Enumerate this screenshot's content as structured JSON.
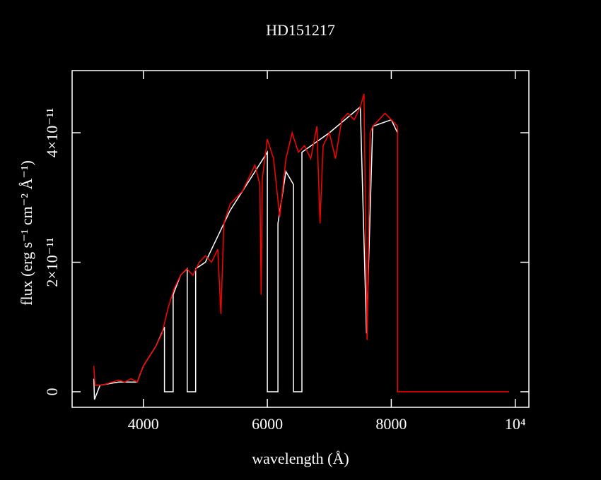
{
  "chart_data": {
    "type": "line",
    "title": "HD151217",
    "x_label": "wavelength (Å)",
    "y_label": "flux (erg s⁻¹ cm⁻² Å⁻¹)",
    "xlim": [
      2850,
      10220
    ],
    "ylim": [
      -2.4e-12,
      4.96e-11
    ],
    "xticks": [
      4000,
      6000,
      8000,
      {
        "value": 10000,
        "label": "10⁴"
      }
    ],
    "yticks": [
      0,
      {
        "value": 2e-11,
        "label": "2×10⁻¹¹"
      },
      {
        "value": 4e-11,
        "label": "4×10⁻¹¹"
      }
    ],
    "series": [
      {
        "color": "#ffffff",
        "x": [
          3200,
          3210,
          3300,
          3600,
          3900,
          4000,
          4200,
          4340,
          4340,
          4480,
          4480,
          4600,
          4707,
          4707,
          4843,
          4843,
          5000,
          5400,
          5800,
          6000,
          6000,
          6171,
          6171,
          6300,
          6422,
          6422,
          6558,
          6558,
          7000,
          7500,
          7600,
          7700,
          8000,
          8100
        ],
        "values": [
          2e-12,
          -1.2e-12,
          1e-12,
          1.5e-12,
          1.5e-12,
          4e-12,
          7e-12,
          1e-11,
          0,
          0,
          1.5e-11,
          1.8e-11,
          1.9e-11,
          0,
          0,
          1.9e-11,
          2e-11,
          2.8e-11,
          3.4e-11,
          3.7e-11,
          0,
          0,
          2.6e-11,
          3.4e-11,
          3.2e-11,
          0,
          0,
          3.7e-11,
          4e-11,
          4.4e-11,
          9e-12,
          4.1e-11,
          4.2e-11,
          4e-11
        ]
      },
      {
        "color": "#ff0000",
        "x": [
          3200,
          3220,
          3300,
          3400,
          3500,
          3600,
          3700,
          3800,
          3900,
          4000,
          4100,
          4200,
          4300,
          4400,
          4500,
          4600,
          4700,
          4800,
          4900,
          5000,
          5100,
          5200,
          5250,
          5300,
          5400,
          5500,
          5600,
          5700,
          5800,
          5880,
          5900,
          5920,
          6000,
          6100,
          6200,
          6300,
          6400,
          6500,
          6600,
          6700,
          6800,
          6850,
          6900,
          7000,
          7100,
          7200,
          7300,
          7400,
          7500,
          7560,
          7610,
          7660,
          7700,
          7800,
          7900,
          8000,
          8100,
          8100,
          9900
        ],
        "values": [
          4e-12,
          1e-12,
          1e-12,
          1.2e-12,
          1.5e-12,
          1.8e-12,
          1.5e-12,
          2e-12,
          1.5e-12,
          4e-12,
          5.5e-12,
          7e-12,
          9e-12,
          1.3e-11,
          1.6e-11,
          1.8e-11,
          1.9e-11,
          1.8e-11,
          2e-11,
          2.1e-11,
          2e-11,
          2.2e-11,
          1.2e-11,
          2.6e-11,
          2.9e-11,
          3e-11,
          3.1e-11,
          3.3e-11,
          3.5e-11,
          3.2e-11,
          1.5e-11,
          3.3e-11,
          3.9e-11,
          3.6e-11,
          2.7e-11,
          3.6e-11,
          4e-11,
          3.7e-11,
          3.8e-11,
          3.6e-11,
          4.1e-11,
          2.6e-11,
          3.8e-11,
          4e-11,
          3.6e-11,
          4.2e-11,
          4.3e-11,
          4.2e-11,
          4.4e-11,
          4.6e-11,
          8e-12,
          4e-11,
          4.1e-11,
          4.2e-11,
          4.3e-11,
          4.2e-11,
          4.1e-11,
          0,
          0
        ]
      }
    ]
  }
}
